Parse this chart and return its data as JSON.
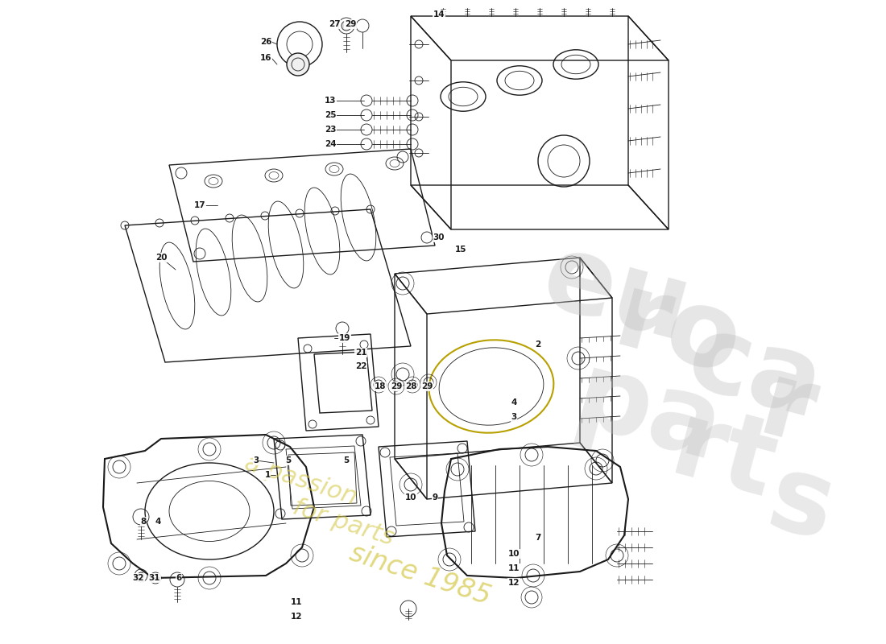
{
  "figsize": [
    11.0,
    8.0
  ],
  "dpi": 100,
  "background_color": "#ffffff",
  "line_color": "#1a1a1a",
  "lw_thin": 0.6,
  "lw_med": 1.0,
  "lw_thick": 1.5,
  "watermark_gray": "#c0c0c0",
  "watermark_yellow": "#d4c84a",
  "labels": [
    [
      "26",
      330,
      52
    ],
    [
      "16",
      330,
      72
    ],
    [
      "27",
      415,
      30
    ],
    [
      "29",
      435,
      30
    ],
    [
      "14",
      545,
      18
    ],
    [
      "13",
      410,
      125
    ],
    [
      "25",
      410,
      143
    ],
    [
      "23",
      410,
      161
    ],
    [
      "24",
      410,
      179
    ],
    [
      "17",
      248,
      255
    ],
    [
      "20",
      200,
      320
    ],
    [
      "30",
      545,
      295
    ],
    [
      "15",
      572,
      310
    ],
    [
      "19",
      428,
      420
    ],
    [
      "21",
      448,
      438
    ],
    [
      "22",
      448,
      455
    ],
    [
      "18",
      472,
      480
    ],
    [
      "29",
      492,
      480
    ],
    [
      "28",
      510,
      480
    ],
    [
      "29",
      530,
      480
    ],
    [
      "2",
      668,
      428
    ],
    [
      "4",
      638,
      500
    ],
    [
      "3",
      638,
      518
    ],
    [
      "3",
      318,
      572
    ],
    [
      "1",
      332,
      590
    ],
    [
      "5",
      358,
      572
    ],
    [
      "5",
      430,
      572
    ],
    [
      "10",
      510,
      618
    ],
    [
      "9",
      540,
      618
    ],
    [
      "8",
      178,
      648
    ],
    [
      "4",
      196,
      648
    ],
    [
      "32",
      172,
      718
    ],
    [
      "31",
      192,
      718
    ],
    [
      "6",
      222,
      718
    ],
    [
      "11",
      368,
      748
    ],
    [
      "12",
      368,
      766
    ],
    [
      "7",
      668,
      668
    ],
    [
      "10",
      638,
      688
    ],
    [
      "11",
      638,
      706
    ],
    [
      "12",
      638,
      724
    ]
  ]
}
